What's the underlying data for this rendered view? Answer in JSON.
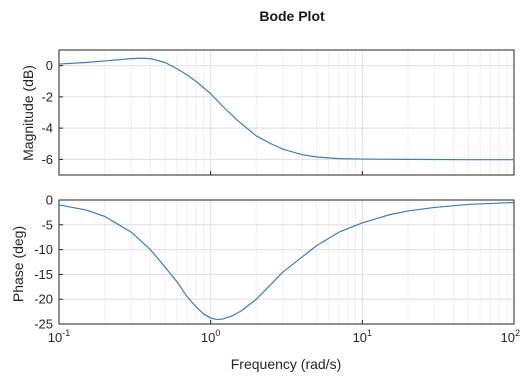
{
  "chart_data": {
    "type": "line",
    "title": "Bode Plot",
    "xlabel": "Frequency (rad/s)",
    "x_scale": "log",
    "xlim": [
      0.1,
      100
    ],
    "x_tick_labels": [
      {
        "value": 0.1,
        "base": "10",
        "exp": "-1"
      },
      {
        "value": 1,
        "base": "10",
        "exp": "0"
      },
      {
        "value": 10,
        "base": "10",
        "exp": "1"
      },
      {
        "value": 100,
        "base": "10",
        "exp": "2"
      }
    ],
    "line_color": "#3a7dc0",
    "grid": true,
    "panels": [
      {
        "ylabel": "Magnitude (dB)",
        "ylim": [
          -7,
          1
        ],
        "y_ticks": [
          0,
          -2,
          -4,
          -6
        ],
        "x": [
          0.1,
          0.15,
          0.2,
          0.3,
          0.35,
          0.4,
          0.5,
          0.6,
          0.7,
          0.8,
          1.0,
          1.2,
          1.5,
          2,
          2.5,
          3,
          4,
          5,
          7,
          10,
          20,
          50,
          100
        ],
        "y": [
          0.1,
          0.2,
          0.3,
          0.45,
          0.48,
          0.45,
          0.2,
          -0.2,
          -0.6,
          -1.0,
          -1.8,
          -2.6,
          -3.5,
          -4.5,
          -5.0,
          -5.35,
          -5.7,
          -5.85,
          -5.95,
          -5.98,
          -6.0,
          -6.02,
          -6.02
        ]
      },
      {
        "ylabel": "Phase (deg)",
        "ylim": [
          -25,
          0
        ],
        "y_ticks": [
          0,
          -5,
          -10,
          -15,
          -20,
          -25
        ],
        "x": [
          0.1,
          0.15,
          0.2,
          0.3,
          0.4,
          0.5,
          0.6,
          0.7,
          0.8,
          0.9,
          1.0,
          1.1,
          1.2,
          1.4,
          1.6,
          2,
          2.5,
          3,
          4,
          5,
          7,
          10,
          15,
          20,
          30,
          50,
          100
        ],
        "y": [
          -1.0,
          -2.0,
          -3.3,
          -6.5,
          -10.0,
          -13.5,
          -16.5,
          -19.5,
          -21.5,
          -23.0,
          -23.8,
          -24.1,
          -24.0,
          -23.3,
          -22.3,
          -20.0,
          -17.0,
          -14.5,
          -11.5,
          -9.2,
          -6.5,
          -4.6,
          -3.0,
          -2.2,
          -1.5,
          -0.9,
          -0.5
        ]
      }
    ]
  }
}
